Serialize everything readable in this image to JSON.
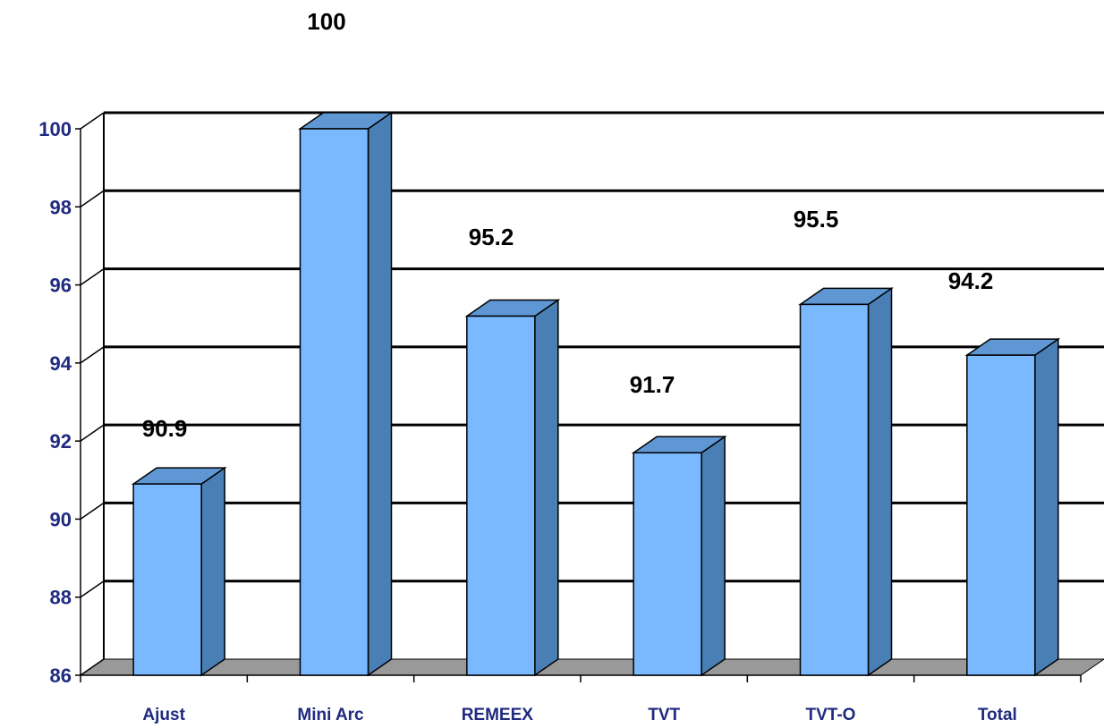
{
  "chart_data": {
    "type": "bar",
    "categories": [
      "Ajust",
      "Mini Arc",
      "REMEEX",
      "TVT",
      "TVT-O",
      "Total"
    ],
    "values": [
      90.9,
      100,
      95.2,
      91.7,
      95.5,
      94.2
    ],
    "data_labels": [
      "90.9",
      "100",
      "95.2",
      "91.7",
      "95.5",
      "94.2"
    ],
    "y_ticks": [
      "86",
      "88",
      "90",
      "92",
      "94",
      "96",
      "98",
      "100"
    ],
    "ylim": [
      86,
      100
    ],
    "grid": true,
    "three_d": true,
    "colors": {
      "bar_front": "#7ab8ff",
      "bar_side": "#4a7fb5",
      "bar_top": "#5f97d4",
      "floor": "#999999",
      "gridline": "#000000",
      "tick_text": "#1f2a80",
      "label_text": "#000000"
    }
  }
}
